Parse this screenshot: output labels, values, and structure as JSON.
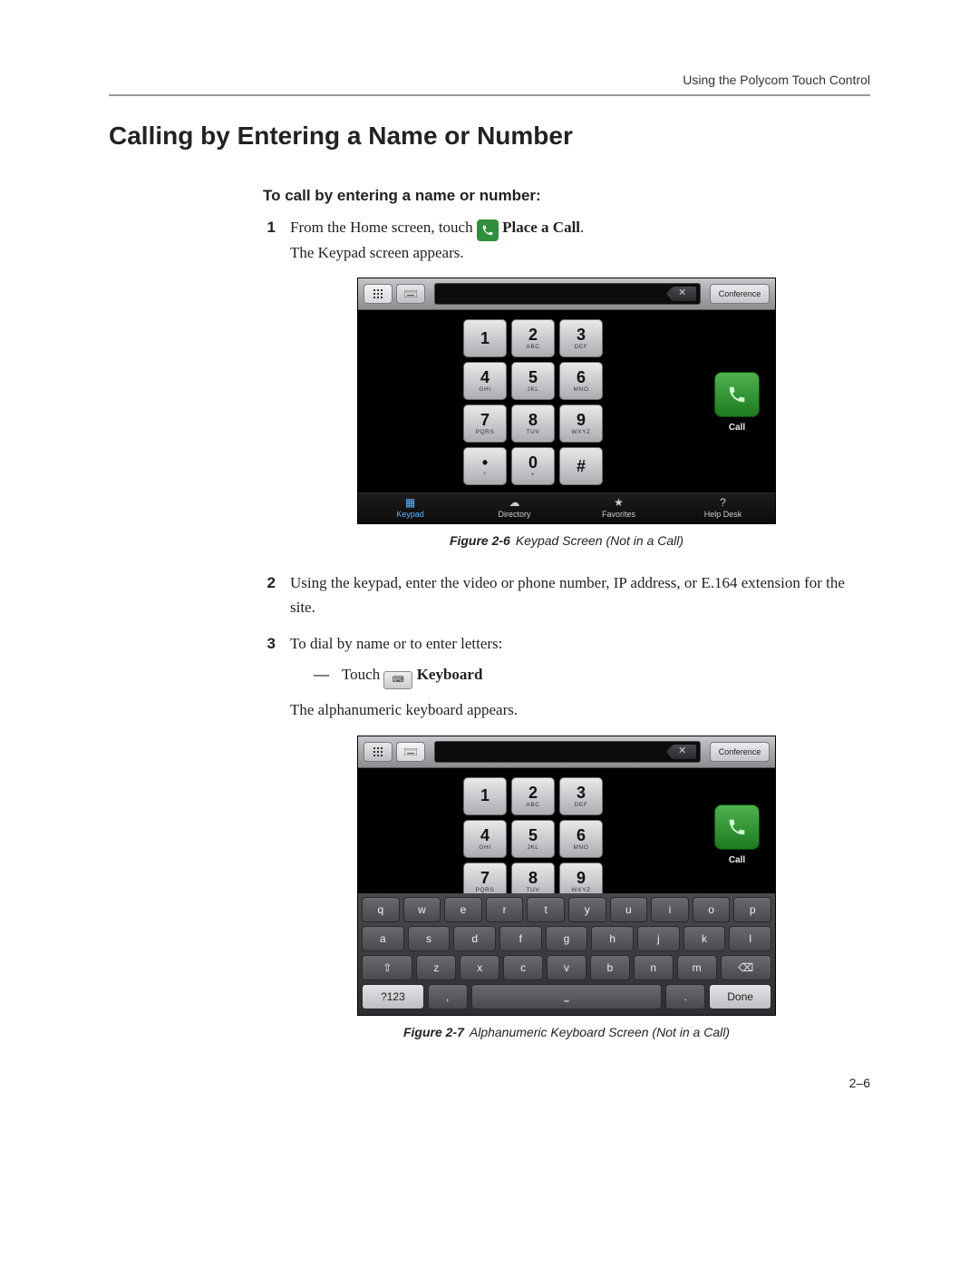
{
  "page": {
    "running_head": "Using the Polycom Touch Control",
    "section_title": "Calling by Entering a Name or Number",
    "subhead": "To call by entering a name or number:",
    "page_number": "2–6"
  },
  "steps": {
    "s1_num": "1",
    "s1a": "From the Home screen, touch ",
    "s1_icon_label": "Place a Call",
    "s1_period": ".",
    "s1b": "The Keypad screen appears.",
    "s2_num": "2",
    "s2": "Using the keypad, enter the video or phone number, IP address, or E.164 extension for the site.",
    "s3_num": "3",
    "s3": "To dial by name or to enter letters:",
    "s3_dash": "—",
    "s3_touch": "Touch ",
    "s3_kbd": "Keyboard",
    "s3b": "The alphanumeric keyboard appears."
  },
  "figures": {
    "f1_id": "Figure 2-6",
    "f1_text": "Keypad Screen (Not in a Call)",
    "f2_id": "Figure 2-7",
    "f2_text": "Alphanumeric Keyboard Screen (Not in a Call)"
  },
  "keypad": {
    "conference": "Conference",
    "call": "Call",
    "tabs": {
      "keypad": "Keypad",
      "directory": "Directory",
      "favorites": "Favorites",
      "help": "Help Desk"
    },
    "keys": [
      {
        "d": "1",
        "s": ""
      },
      {
        "d": "2",
        "s": "ABC"
      },
      {
        "d": "3",
        "s": "DEF"
      },
      {
        "d": "4",
        "s": "GHI"
      },
      {
        "d": "5",
        "s": "JKL"
      },
      {
        "d": "6",
        "s": "MNO"
      },
      {
        "d": "7",
        "s": "PQRS"
      },
      {
        "d": "8",
        "s": "TUV"
      },
      {
        "d": "9",
        "s": "WXYZ"
      },
      {
        "d": "•",
        "s": "*"
      },
      {
        "d": "0",
        "s": "+"
      },
      {
        "d": "#",
        "s": ""
      }
    ]
  },
  "qwerty": {
    "row1": [
      "q",
      "w",
      "e",
      "r",
      "t",
      "y",
      "u",
      "i",
      "o",
      "p"
    ],
    "row2": [
      "a",
      "s",
      "d",
      "f",
      "g",
      "h",
      "j",
      "k",
      "l"
    ],
    "row3": [
      "⇧",
      "z",
      "x",
      "c",
      "v",
      "b",
      "n",
      "m",
      "⌫"
    ],
    "row4_left": "?123",
    "row4_space": "⎵",
    "row4_dot": ".",
    "row4_done": "Done",
    "row3_del_sub": "DEL"
  },
  "style": {
    "backspace_color": "#3a3a3e",
    "call_green": "#2e8f3c"
  }
}
